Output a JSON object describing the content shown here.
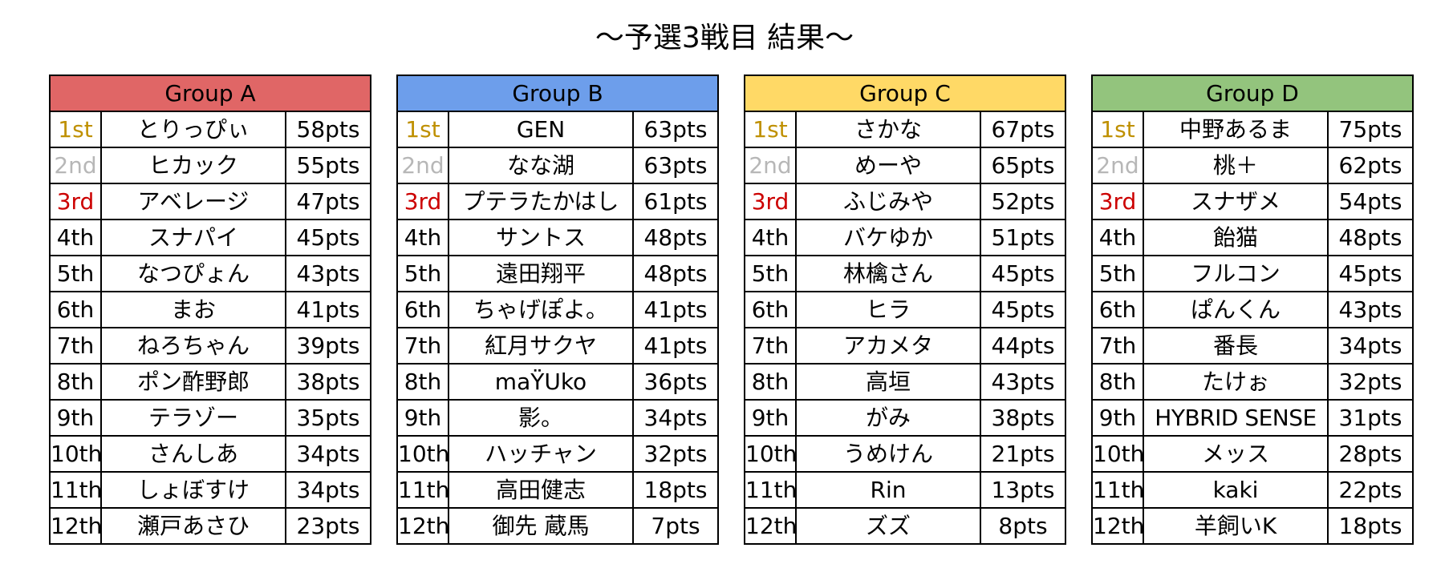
{
  "title": "～予選3戦目 結果～",
  "colors": {
    "group_a": "#e06666",
    "group_b": "#6d9eeb",
    "group_c": "#ffd966",
    "group_d": "#93c47d",
    "first": "#bf9000",
    "second": "#b7b7b7",
    "third": "#cc0000"
  },
  "groups": [
    {
      "name": "Group A",
      "rows": [
        {
          "rank": "1st",
          "name": "とりっぴぃ",
          "pts": "58pts"
        },
        {
          "rank": "2nd",
          "name": "ヒカック",
          "pts": "55pts"
        },
        {
          "rank": "3rd",
          "name": "アベレージ",
          "pts": "47pts"
        },
        {
          "rank": "4th",
          "name": "スナパイ",
          "pts": "45pts"
        },
        {
          "rank": "5th",
          "name": "なつぴょん",
          "pts": "43pts"
        },
        {
          "rank": "6th",
          "name": "まお",
          "pts": "41pts"
        },
        {
          "rank": "7th",
          "name": "ねろちゃん",
          "pts": "39pts"
        },
        {
          "rank": "8th",
          "name": "ポン酢野郎",
          "pts": "38pts"
        },
        {
          "rank": "9th",
          "name": "テラゾー",
          "pts": "35pts"
        },
        {
          "rank": "10th",
          "name": "さんしあ",
          "pts": "34pts"
        },
        {
          "rank": "11th",
          "name": "しょぼすけ",
          "pts": "34pts"
        },
        {
          "rank": "12th",
          "name": "瀬戸あさひ",
          "pts": "23pts"
        }
      ]
    },
    {
      "name": "Group B",
      "rows": [
        {
          "rank": "1st",
          "name": "GEN",
          "pts": "63pts"
        },
        {
          "rank": "2nd",
          "name": "なな湖",
          "pts": "63pts"
        },
        {
          "rank": "3rd",
          "name": "プテラたかはし",
          "pts": "61pts"
        },
        {
          "rank": "4th",
          "name": "サントス",
          "pts": "48pts"
        },
        {
          "rank": "5th",
          "name": "遠田翔平",
          "pts": "48pts"
        },
        {
          "rank": "6th",
          "name": "ちゃげぽよ。",
          "pts": "41pts"
        },
        {
          "rank": "7th",
          "name": "紅月サクヤ",
          "pts": "41pts"
        },
        {
          "rank": "8th",
          "name": "maŸUko",
          "pts": "36pts"
        },
        {
          "rank": "9th",
          "name": "影。",
          "pts": "34pts"
        },
        {
          "rank": "10th",
          "name": "ハッチャン",
          "pts": "32pts"
        },
        {
          "rank": "11th",
          "name": "高田健志",
          "pts": "18pts"
        },
        {
          "rank": "12th",
          "name": "御先 蔵馬",
          "pts": "7pts"
        }
      ]
    },
    {
      "name": "Group C",
      "rows": [
        {
          "rank": "1st",
          "name": "さかな",
          "pts": "67pts"
        },
        {
          "rank": "2nd",
          "name": "めーや",
          "pts": "65pts"
        },
        {
          "rank": "3rd",
          "name": "ふじみや",
          "pts": "52pts"
        },
        {
          "rank": "4th",
          "name": "バケゆか",
          "pts": "51pts"
        },
        {
          "rank": "5th",
          "name": "林檎さん",
          "pts": "45pts"
        },
        {
          "rank": "6th",
          "name": "ヒラ",
          "pts": "45pts"
        },
        {
          "rank": "7th",
          "name": "アカメタ",
          "pts": "44pts"
        },
        {
          "rank": "8th",
          "name": "高垣",
          "pts": "43pts"
        },
        {
          "rank": "9th",
          "name": "がみ",
          "pts": "38pts"
        },
        {
          "rank": "10th",
          "name": "うめけん",
          "pts": "21pts"
        },
        {
          "rank": "11th",
          "name": "Rin",
          "pts": "13pts"
        },
        {
          "rank": "12th",
          "name": "ズズ",
          "pts": "8pts"
        }
      ]
    },
    {
      "name": "Group D",
      "rows": [
        {
          "rank": "1st",
          "name": "中野あるま",
          "pts": "75pts"
        },
        {
          "rank": "2nd",
          "name": "桃＋",
          "pts": "62pts"
        },
        {
          "rank": "3rd",
          "name": "スナザメ",
          "pts": "54pts"
        },
        {
          "rank": "4th",
          "name": "飴猫",
          "pts": "48pts"
        },
        {
          "rank": "5th",
          "name": "フルコン",
          "pts": "45pts"
        },
        {
          "rank": "6th",
          "name": "ぱんくん",
          "pts": "43pts"
        },
        {
          "rank": "7th",
          "name": "番長",
          "pts": "34pts"
        },
        {
          "rank": "8th",
          "name": "たけぉ",
          "pts": "32pts"
        },
        {
          "rank": "9th",
          "name": "HYBRID SENSE",
          "pts": "31pts"
        },
        {
          "rank": "10th",
          "name": "メッス",
          "pts": "28pts"
        },
        {
          "rank": "11th",
          "name": "kaki",
          "pts": "22pts"
        },
        {
          "rank": "12th",
          "name": "羊飼いK",
          "pts": "18pts"
        }
      ]
    }
  ]
}
